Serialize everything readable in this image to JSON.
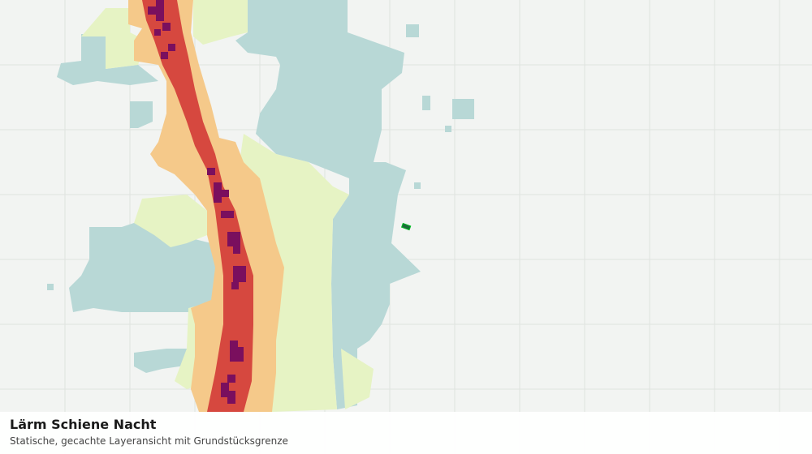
{
  "header": {
    "title": "Lärm Schiene Nacht",
    "subtitle": "Statische, gecachte Layeransicht mit Grundstücksgrenze"
  }
}
